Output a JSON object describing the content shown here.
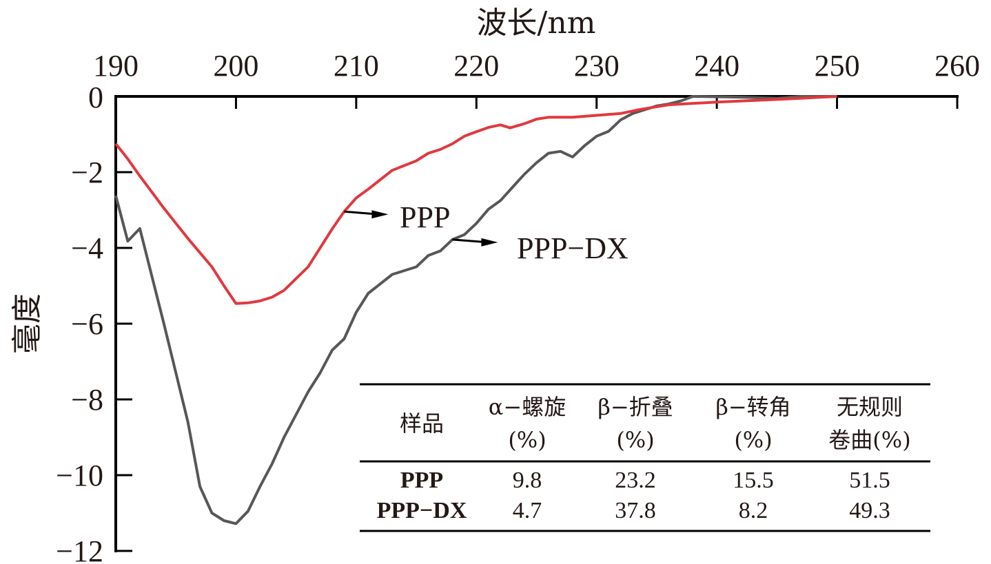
{
  "chart_data": {
    "type": "line",
    "title": "",
    "xlabel": "波长/nm",
    "ylabel": "毫度",
    "xlim": [
      190,
      260
    ],
    "ylim": [
      -12,
      0
    ],
    "x_ticks": [
      "190",
      "200",
      "210",
      "220",
      "230",
      "240",
      "250",
      "260"
    ],
    "y_ticks": [
      "0",
      "−2",
      "−4",
      "−6",
      "−8",
      "−10",
      "−12"
    ],
    "x_axis_position": "top",
    "grid": false,
    "colors": {
      "PPP": "#e0393e",
      "PPP-DX": "#575757",
      "axis": "#000000",
      "text": "#231815"
    },
    "series": [
      {
        "name": "PPP",
        "label": "PPP",
        "x": [
          190,
          191,
          192,
          194,
          196,
          198,
          199,
          200,
          201,
          202,
          203,
          204,
          206,
          208,
          209,
          210,
          211,
          212,
          213,
          215,
          216,
          217,
          218,
          219,
          220,
          221,
          222,
          222.8,
          224,
          225,
          226,
          228,
          230,
          232,
          233.5,
          236,
          240,
          245,
          250
        ],
        "y": [
          -1.25,
          -1.65,
          -2.1,
          -2.95,
          -3.75,
          -4.5,
          -5.0,
          -5.47,
          -5.45,
          -5.4,
          -5.3,
          -5.12,
          -4.5,
          -3.5,
          -3.04,
          -2.68,
          -2.45,
          -2.2,
          -1.95,
          -1.7,
          -1.5,
          -1.4,
          -1.25,
          -1.05,
          -0.93,
          -0.82,
          -0.75,
          -0.83,
          -0.72,
          -0.6,
          -0.55,
          -0.55,
          -0.5,
          -0.45,
          -0.35,
          -0.22,
          -0.15,
          -0.08,
          0
        ]
      },
      {
        "name": "PPP-DX",
        "label": "PPP−DX",
        "x": [
          190,
          191,
          192,
          194,
          196,
          197,
          198,
          199,
          200,
          201,
          202,
          203,
          204,
          206,
          207,
          208,
          209,
          210,
          211,
          212,
          213,
          215,
          216,
          217,
          218,
          219,
          220,
          221,
          222,
          223,
          224,
          225,
          226,
          227,
          228,
          229,
          230,
          231,
          232,
          233,
          235,
          236,
          237,
          238,
          242,
          245,
          247,
          250
        ],
        "y": [
          -2.62,
          -3.82,
          -3.49,
          -6.0,
          -8.6,
          -10.3,
          -11.0,
          -11.2,
          -11.28,
          -10.95,
          -10.3,
          -9.7,
          -9.0,
          -7.8,
          -7.3,
          -6.7,
          -6.4,
          -5.7,
          -5.2,
          -4.95,
          -4.7,
          -4.5,
          -4.2,
          -4.08,
          -3.78,
          -3.65,
          -3.35,
          -2.98,
          -2.75,
          -2.4,
          -2.05,
          -1.75,
          -1.5,
          -1.45,
          -1.6,
          -1.3,
          -1.05,
          -0.92,
          -0.62,
          -0.45,
          -0.25,
          -0.2,
          -0.12,
          0,
          -0.02,
          -0.05,
          0,
          0
        ]
      }
    ],
    "annotations": [
      {
        "text": "PPP",
        "series": "PPP",
        "arrow_from_x": 209,
        "arrow_from_y": -3.04
      },
      {
        "text": "PPP−DX",
        "series": "PPP-DX",
        "arrow_from_x": 218,
        "arrow_from_y": -3.78
      }
    ],
    "inset_table": {
      "header": [
        {
          "line1": "样品",
          "line2": ""
        },
        {
          "line1": "α−螺旋",
          "line2": "(%)"
        },
        {
          "line1": "β−折叠",
          "line2": "(%)"
        },
        {
          "line1": "β−转角",
          "line2": "(%)"
        },
        {
          "line1": "无规则",
          "line2": "卷曲(%)"
        }
      ],
      "rows": [
        [
          "PPP",
          "9.8",
          "23.2",
          "15.5",
          "51.5"
        ],
        [
          "PPP−DX",
          "4.7",
          "37.8",
          "8.2",
          "49.3"
        ]
      ]
    }
  }
}
